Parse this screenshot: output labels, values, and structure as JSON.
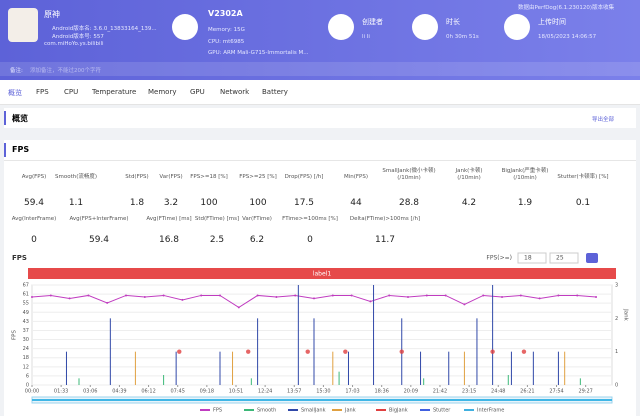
{
  "header": {
    "app": {
      "name": "原神",
      "version_name": "Android版本名: 3.6.0_13833164_139...",
      "version_code": "Android版本号: 557",
      "package": "com.miHoYo.ys.bilibili"
    },
    "device": {
      "name": "V2302A",
      "memory": "Memory: 15G",
      "cpu": "CPU: mt6985",
      "gpu": "GPU: ARM Mali-G715-Immortalis M..."
    },
    "creator": {
      "label": "创建者",
      "value": "li li"
    },
    "duration": {
      "label": "时长",
      "value": "0h 30m 51s"
    },
    "upload": {
      "label": "上传时间",
      "value": "18/05/2023 14:06:57"
    },
    "collector": "数据由PerfDog(6.1.230120)版本收集",
    "note_label": "备注:",
    "note_placeholder": "添加备注，不能过200个字符"
  },
  "tabs": [
    "概览",
    "FPS",
    "CPU",
    "Temperature",
    "Memory",
    "GPU",
    "Network",
    "Battery"
  ],
  "overview": {
    "title": "概览",
    "export": "导出全部"
  },
  "fps_section": {
    "title": "FPS",
    "stats": [
      [
        {
          "label": "Avg(FPS)",
          "value": 59.4
        },
        {
          "label": "Smooth(流畅度)",
          "value": 1.1
        },
        {
          "label": "Std(FPS)",
          "value": 1.8
        },
        {
          "label": "Var(FPS)",
          "value": 3.2
        },
        {
          "label": "FPS>=18 [%]",
          "value": 100
        },
        {
          "label": "FPS>=25 [%]",
          "value": 100
        },
        {
          "label": "Drop(FPS) [/h]",
          "value": 17.5
        },
        {
          "label": "Min(FPS)",
          "value": 44
        },
        {
          "label": "SmallJank(微小卡顿)\n(/10min)",
          "value": 28.8
        },
        {
          "label": "Jank(卡顿)\n(/10min)",
          "value": 4.2
        },
        {
          "label": "BigJank(严重卡顿)\n(/10min)",
          "value": 1.9
        },
        {
          "label": "Stutter(卡顿率) [%]",
          "value": 0.1
        }
      ],
      [
        {
          "label": "Avg(InterFrame)",
          "value": 0
        },
        {
          "label": "Avg(FPS+InterFrame)",
          "value": 59.4
        },
        {
          "label": "Avg(FTime) [ms]",
          "value": 16.8
        },
        {
          "label": "Std(FTime) [ms]",
          "value": 2.5
        },
        {
          "label": "Var(FTime)",
          "value": 6.2
        },
        {
          "label": "FTime>=100ms [%]",
          "value": 0
        },
        {
          "label": "Delta(FTime)>100ms [/h]",
          "value": 11.7
        }
      ]
    ]
  },
  "chart_data": {
    "type": "line",
    "title": "FPS",
    "threshold_label": "FPS(>=)",
    "thresholds": [
      18,
      25
    ],
    "band_label": "label1",
    "y_label": "FPS",
    "y2_label": "Jank",
    "xlim": [
      0,
      1851
    ],
    "ylim": [
      0,
      67
    ],
    "y2lim": [
      0,
      3
    ],
    "yticks": [
      0,
      {
        "value": 6.09,
        "label": "6"
      },
      {
        "value": 12.18,
        "label": "12"
      },
      {
        "value": 18.27,
        "label": "18"
      },
      {
        "value": 24.36,
        "label": "24"
      },
      {
        "value": 30.45,
        "label": "30"
      },
      {
        "value": 36.55,
        "label": "37"
      },
      {
        "value": 42.64,
        "label": "43"
      },
      {
        "value": 48.73,
        "label": "49"
      },
      {
        "value": 54.82,
        "label": "55"
      },
      {
        "value": 60.91,
        "label": "61"
      },
      67
    ],
    "y2ticks": [
      0,
      1,
      2,
      3
    ],
    "xticks": [
      {
        "value": 0,
        "label": "00:00"
      },
      {
        "value": 93,
        "label": "01:33"
      },
      {
        "value": 186,
        "label": "03:06"
      },
      {
        "value": 279,
        "label": "04:39"
      },
      {
        "value": 372,
        "label": "06:12"
      },
      {
        "value": 465,
        "label": "07:45"
      },
      {
        "value": 558,
        "label": "09:18"
      },
      {
        "value": 651,
        "label": "10:51"
      },
      {
        "value": 744,
        "label": "12:24"
      },
      {
        "value": 837,
        "label": "13:57"
      },
      {
        "value": 930,
        "label": "15:30"
      },
      {
        "value": 1023,
        "label": "17:03"
      },
      {
        "value": 1116,
        "label": "18:36"
      },
      {
        "value": 1209,
        "label": "20:09"
      },
      {
        "value": 1302,
        "label": "21:42"
      },
      {
        "value": 1395,
        "label": "23:15"
      },
      {
        "value": 1488,
        "label": "24:48"
      },
      {
        "value": 1581,
        "label": "26:21"
      },
      {
        "value": 1674,
        "label": "27:54"
      },
      {
        "value": 1767,
        "label": "29:27"
      }
    ],
    "x": [
      0,
      60,
      120,
      180,
      240,
      300,
      360,
      420,
      480,
      540,
      600,
      660,
      720,
      780,
      840,
      900,
      960,
      1020,
      1080,
      1140,
      1200,
      1260,
      1320,
      1380,
      1440,
      1500,
      1560,
      1620,
      1680,
      1740,
      1800
    ],
    "series": [
      {
        "name": "FPS",
        "color": "#c03cc0",
        "style": "line",
        "values": [
          59,
          60,
          58,
          60,
          55,
          60,
          59,
          60,
          57,
          60,
          60,
          52,
          60,
          59,
          60,
          58,
          60,
          60,
          56,
          60,
          59,
          60,
          60,
          54,
          60,
          59,
          60,
          58,
          60,
          60,
          59
        ]
      },
      {
        "name": "Smooth",
        "color": "#3cb878",
        "style": "stem",
        "axis": "y2",
        "x": [
          150,
          420,
          700,
          980,
          1250,
          1520,
          1750
        ],
        "values": [
          0.2,
          0.3,
          0.2,
          0.4,
          0.2,
          0.3,
          0.2
        ]
      },
      {
        "name": "SmallJank",
        "color": "#3048a8",
        "style": "stem",
        "axis": "y2",
        "x": [
          110,
          250,
          460,
          600,
          720,
          850,
          900,
          1010,
          1090,
          1180,
          1240,
          1330,
          1420,
          1470,
          1530,
          1600,
          1680
        ],
        "values": [
          1,
          2,
          1,
          1,
          2,
          3,
          2,
          1,
          3,
          2,
          1,
          1,
          2,
          3,
          1,
          1,
          1
        ]
      },
      {
        "name": "Jank",
        "color": "#e0a040",
        "style": "stem",
        "axis": "y2",
        "x": [
          330,
          640,
          960,
          1380,
          1700
        ],
        "values": [
          1,
          1,
          1,
          1,
          1
        ]
      },
      {
        "name": "BigJank",
        "color": "#e04040",
        "style": "dot",
        "axis": "y2",
        "x": [
          470,
          690,
          880,
          1000,
          1180,
          1470,
          1570
        ],
        "values": [
          1,
          1,
          1,
          1,
          1,
          1,
          1
        ]
      },
      {
        "name": "Stutter",
        "color": "#4060e0",
        "style": "stem",
        "axis": "y2",
        "x": [
          0,
          1851
        ],
        "values": [
          0,
          0
        ]
      },
      {
        "name": "InterFrame",
        "color": "#40b0e0",
        "style": "stem",
        "axis": "y2",
        "x": [
          0,
          1851
        ],
        "values": [
          0,
          0
        ]
      }
    ]
  }
}
